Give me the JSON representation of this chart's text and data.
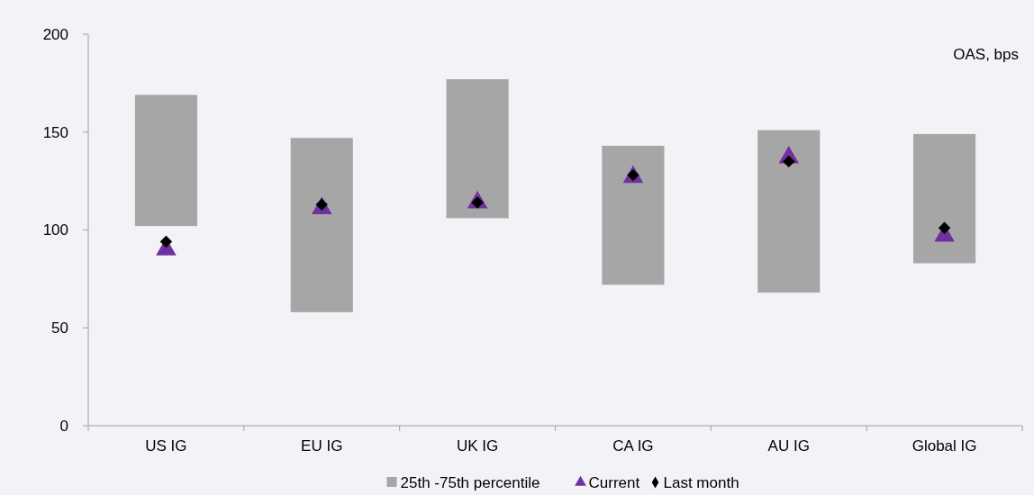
{
  "chart_data": {
    "type": "bar",
    "categories": [
      "US IG",
      "EU IG",
      "UK IG",
      "CA IG",
      "AU IG",
      "Global IG"
    ],
    "series": [
      {
        "name": "25th -75th percentile",
        "color": "#a6a6a6",
        "base": [
          102,
          58,
          106,
          72,
          68,
          83
        ],
        "values": [
          67,
          89,
          71,
          71,
          83,
          66
        ]
      },
      {
        "name": "Current",
        "type": "scatter",
        "marker": "triangle",
        "color": "#7030a0",
        "x": [
          "US IG",
          "EU IG",
          "UK IG",
          "CA IG",
          "AU IG",
          "Global IG"
        ],
        "values": [
          90,
          111,
          114,
          127,
          137,
          97
        ]
      },
      {
        "name": "Last month",
        "type": "scatter",
        "marker": "diamond",
        "color": "#000000",
        "x": [
          "US IG",
          "EU IG",
          "UK IG",
          "CA IG",
          "AU IG",
          "Global IG"
        ],
        "values": [
          94,
          113,
          114,
          128,
          135,
          101
        ]
      }
    ],
    "ylim": [
      0,
      200
    ],
    "yticks": [
      0,
      50,
      100,
      150,
      200
    ],
    "annotations": [
      "OAS, bps"
    ],
    "legend": "bottom",
    "grid": false
  }
}
